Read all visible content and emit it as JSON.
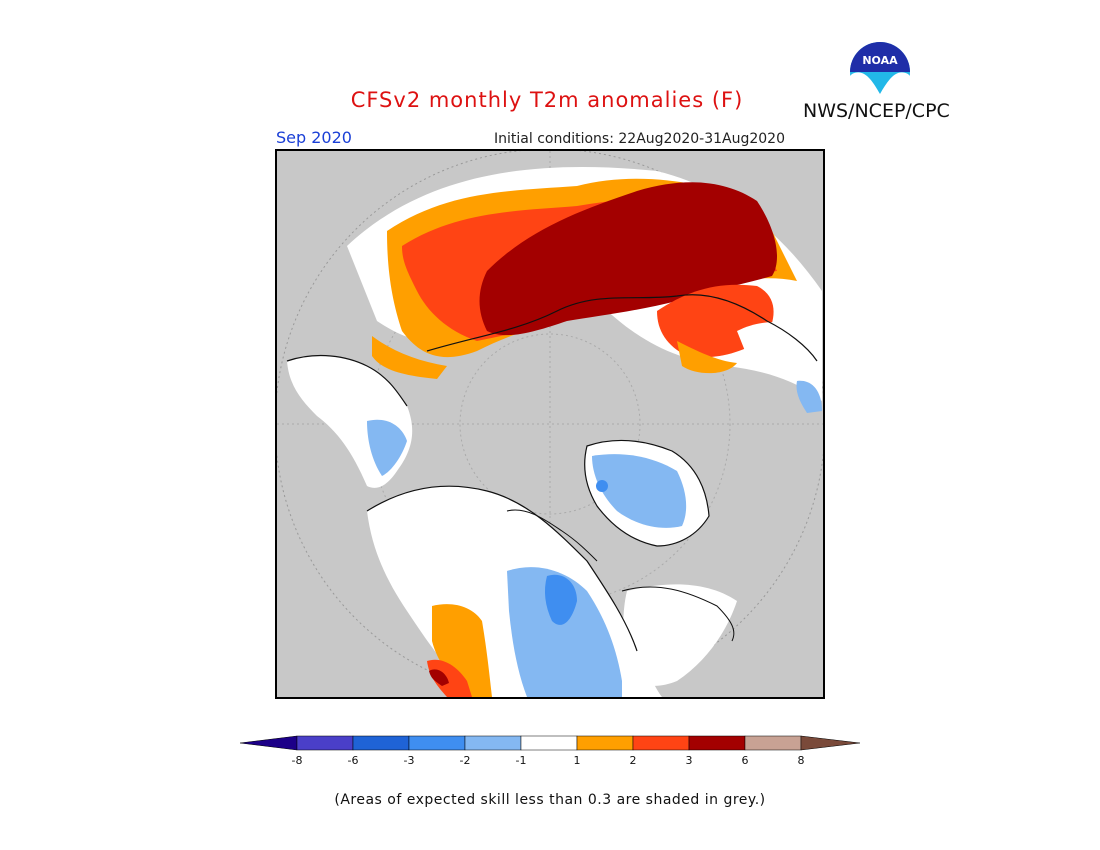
{
  "title": "CFSv2 monthly T2m anomalies (F)",
  "agency": "NWS/NCEP/CPC",
  "logo": {
    "text": "NOAA",
    "icon": "noaa-logo-icon",
    "color_dark": "#1f2ea8",
    "color_light": "#22b8e8"
  },
  "valid_month": "Sep 2020",
  "initial_conditions": "Initial conditions: 22Aug2020-31Aug2020",
  "map": {
    "projection": "north-polar-stereographic",
    "background_color": "#c8c8c8",
    "grey_meaning": "expected skill less than 0.3"
  },
  "legend": {
    "ticks": [
      "-8",
      "-6",
      "-3",
      "-2",
      "-1",
      "1",
      "2",
      "3",
      "6",
      "8"
    ],
    "colors": {
      "lt_-8": "#1c0088",
      "-8_-6": "#4a3fc8",
      "-6_-3": "#1f63d6",
      "-3_-2": "#3f8ef0",
      "-2_-1": "#84b8f2",
      "-1_1": "#ffffff",
      "1_2": "#ff9f00",
      "2_3": "#ff4414",
      "3_6": "#a30000",
      "6_8": "#c8a294",
      "gt_8": "#7a4a3a"
    }
  },
  "footnote": "(Areas of expected skill less than 0.3 are shaded in grey.)"
}
